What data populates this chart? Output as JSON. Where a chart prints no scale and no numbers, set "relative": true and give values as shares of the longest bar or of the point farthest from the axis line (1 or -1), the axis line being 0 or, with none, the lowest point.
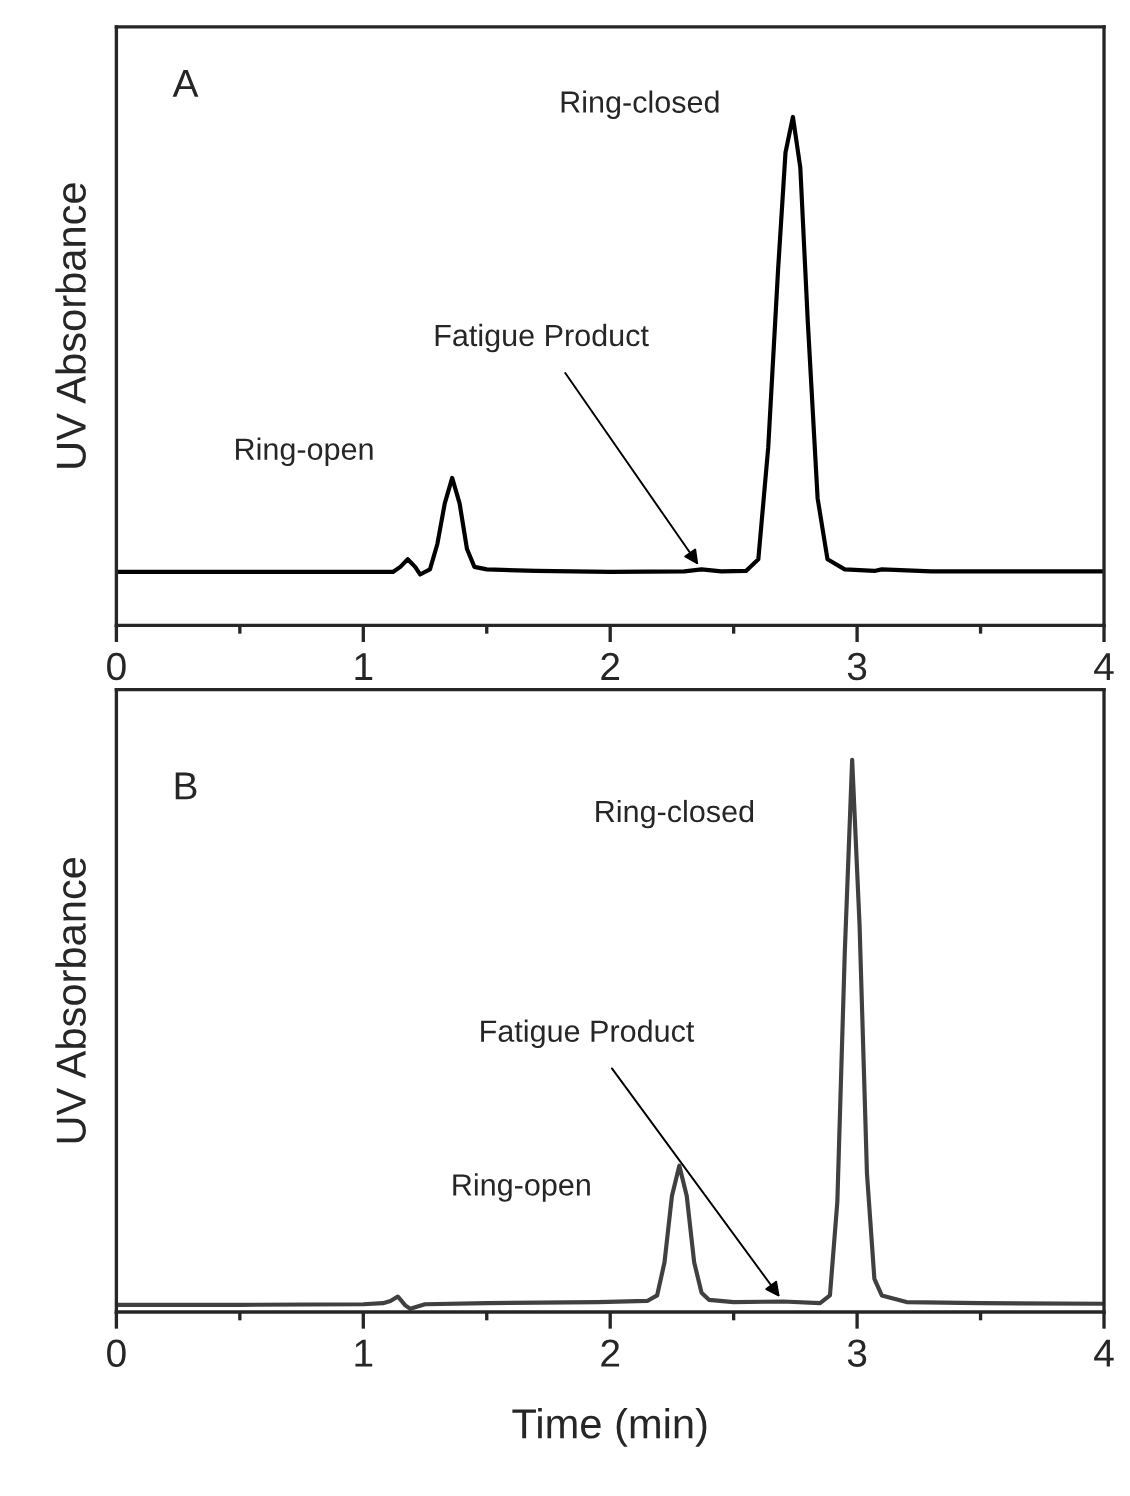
{
  "chart_data": [
    {
      "type": "line",
      "relative": true,
      "ylabel": "UV Absorbance",
      "xlim": [
        0,
        4
      ],
      "xticks": [
        0,
        {
          "value": 0.5,
          "label": null
        },
        1,
        {
          "value": 1.5,
          "label": null
        },
        2,
        {
          "value": 2.5,
          "label": null
        },
        3,
        {
          "value": 3.5,
          "label": null
        },
        4
      ],
      "tick_labels": "x",
      "series": [
        {
          "color": "#000000",
          "x": [
            0,
            0.5,
            1.0,
            1.12,
            1.15,
            1.18,
            1.21,
            1.23,
            1.27,
            1.3,
            1.33,
            1.36,
            1.39,
            1.42,
            1.45,
            1.5,
            1.7,
            2.0,
            2.3,
            2.37,
            2.45,
            2.55,
            2.6,
            2.64,
            2.68,
            2.71,
            2.74,
            2.77,
            2.8,
            2.84,
            2.88,
            2.95,
            3.07,
            3.1,
            3.3,
            3.6,
            4.0
          ],
          "values": [
            0.105,
            0.105,
            0.105,
            0.105,
            0.115,
            0.13,
            0.115,
            0.1,
            0.11,
            0.16,
            0.24,
            0.29,
            0.24,
            0.15,
            0.115,
            0.11,
            0.107,
            0.105,
            0.106,
            0.11,
            0.106,
            0.107,
            0.13,
            0.35,
            0.7,
            0.93,
            1.0,
            0.9,
            0.6,
            0.25,
            0.13,
            0.11,
            0.107,
            0.11,
            0.106,
            0.106,
            0.106
          ]
        }
      ],
      "annotations": [
        "A",
        "Ring-closed",
        {
          "text": "Fatigue Product",
          "x": 2.37,
          "y": 0.11
        },
        "Ring-open"
      ]
    },
    {
      "type": "line",
      "relative": true,
      "ylabel": "UV Absorbance",
      "xlabel": "Time (min)",
      "xlim": [
        0,
        4
      ],
      "xticks": [
        0,
        {
          "value": 0.5,
          "label": null
        },
        1,
        {
          "value": 1.5,
          "label": null
        },
        2,
        {
          "value": 2.5,
          "label": null
        },
        3,
        {
          "value": 3.5,
          "label": null
        },
        4
      ],
      "tick_labels": "x",
      "series": [
        {
          "color": "#404040",
          "x": [
            0,
            0.5,
            1.0,
            1.08,
            1.11,
            1.14,
            1.17,
            1.19,
            1.25,
            1.5,
            1.95,
            2.15,
            2.19,
            2.22,
            2.25,
            2.28,
            2.31,
            2.34,
            2.37,
            2.4,
            2.5,
            2.7,
            2.85,
            2.89,
            2.92,
            2.95,
            2.98,
            3.01,
            3.04,
            3.07,
            3.1,
            3.2,
            3.5,
            4.0
          ],
          "values": [
            0.013,
            0.013,
            0.014,
            0.016,
            0.02,
            0.028,
            0.012,
            0.006,
            0.014,
            0.016,
            0.018,
            0.02,
            0.03,
            0.09,
            0.21,
            0.265,
            0.21,
            0.09,
            0.035,
            0.022,
            0.018,
            0.019,
            0.016,
            0.03,
            0.2,
            0.65,
            1.0,
            0.7,
            0.25,
            0.06,
            0.03,
            0.018,
            0.016,
            0.015
          ]
        }
      ],
      "annotations": [
        "B",
        "Ring-closed",
        {
          "text": "Fatigue Product",
          "x": 2.7,
          "y": 0.019
        },
        "Ring-open"
      ]
    }
  ]
}
